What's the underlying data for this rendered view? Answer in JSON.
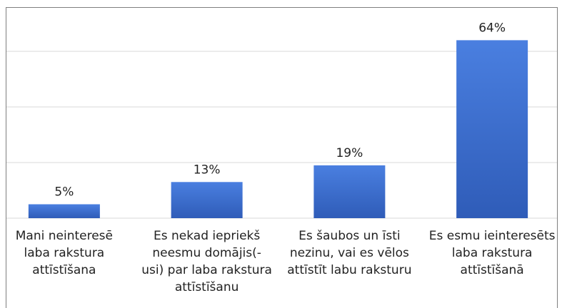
{
  "chart_data": {
    "type": "bar",
    "categories": [
      "Mani neinteresē\nlaba rakstura\nattīstīšana",
      "Es nekad iepriekš\nneesmu domājis(-\nusi) par laba rakstura\nattīstīšanu",
      "Es šaubos un īsti\nnezinu, vai es vēlos\nattīstīt labu raksturu",
      "Es esmu ieinteresēts\nlaba rakstura\nattīstīšanā"
    ],
    "values": [
      5,
      13,
      19,
      64
    ],
    "value_labels": [
      "5%",
      "13%",
      "19%",
      "64%"
    ],
    "color": "#3f6fcf",
    "ylim": [
      0,
      70
    ],
    "yticks": [
      0,
      20,
      40,
      60
    ],
    "grid": true
  }
}
